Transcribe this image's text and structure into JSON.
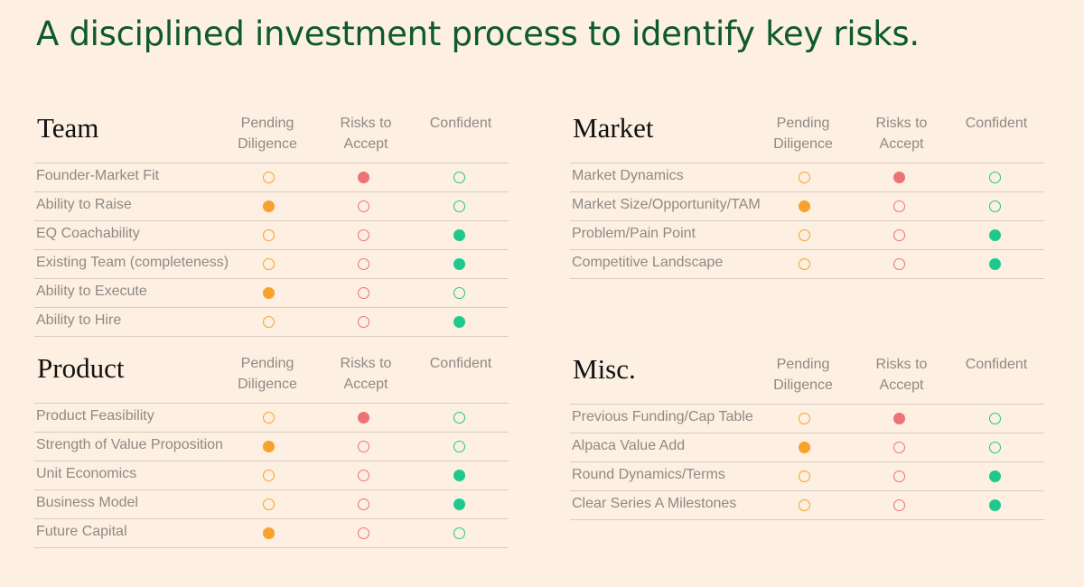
{
  "title": "A disciplined investment process to identify key risks.",
  "columns": {
    "pending": "Pending\nDiligence",
    "risks": "Risks to\nAccept",
    "confident": "Confident"
  },
  "legend_colors": {
    "pending": "#f6a22c",
    "risk": "#ec7375",
    "confident": "#1ec98e"
  },
  "sections": [
    {
      "title": "Team",
      "rows": [
        {
          "label": "Founder-Market Fit",
          "pending": "outline",
          "risk": "filled",
          "confident": "outline"
        },
        {
          "label": "Ability to Raise",
          "pending": "filled",
          "risk": "outline",
          "confident": "outline"
        },
        {
          "label": "EQ Coachability",
          "pending": "outline",
          "risk": "outline",
          "confident": "filled"
        },
        {
          "label": "Existing Team (completeness)",
          "pending": "outline",
          "risk": "outline",
          "confident": "filled"
        },
        {
          "label": "Ability to Execute",
          "pending": "filled",
          "risk": "outline",
          "confident": "outline"
        },
        {
          "label": "Ability to Hire",
          "pending": "outline",
          "risk": "outline",
          "confident": "filled"
        }
      ]
    },
    {
      "title": "Market",
      "rows": [
        {
          "label": "Market Dynamics",
          "pending": "outline",
          "risk": "filled",
          "confident": "outline"
        },
        {
          "label": "Market Size/Opportunity/TAM",
          "pending": "filled",
          "risk": "outline",
          "confident": "outline"
        },
        {
          "label": "Problem/Pain Point",
          "pending": "outline",
          "risk": "outline",
          "confident": "filled"
        },
        {
          "label": "Competitive Landscape",
          "pending": "outline",
          "risk": "outline",
          "confident": "filled"
        }
      ]
    },
    {
      "title": "Product",
      "rows": [
        {
          "label": "Product Feasibility",
          "pending": "outline",
          "risk": "filled",
          "confident": "outline"
        },
        {
          "label": "Strength of Value Proposition",
          "pending": "filled",
          "risk": "outline",
          "confident": "outline"
        },
        {
          "label": "Unit Economics",
          "pending": "outline",
          "risk": "outline",
          "confident": "filled"
        },
        {
          "label": "Business Model",
          "pending": "outline",
          "risk": "outline",
          "confident": "filled"
        },
        {
          "label": "Future Capital",
          "pending": "filled",
          "risk": "outline",
          "confident": "outline"
        }
      ]
    },
    {
      "title": "Misc.",
      "rows": [
        {
          "label": "Previous Funding/Cap Table",
          "pending": "outline",
          "risk": "filled",
          "confident": "outline"
        },
        {
          "label": "Alpaca Value Add",
          "pending": "filled",
          "risk": "outline",
          "confident": "outline"
        },
        {
          "label": "Round Dynamics/Terms",
          "pending": "outline",
          "risk": "outline",
          "confident": "filled"
        },
        {
          "label": "Clear Series A Milestones",
          "pending": "outline",
          "risk": "outline",
          "confident": "filled"
        }
      ]
    }
  ]
}
